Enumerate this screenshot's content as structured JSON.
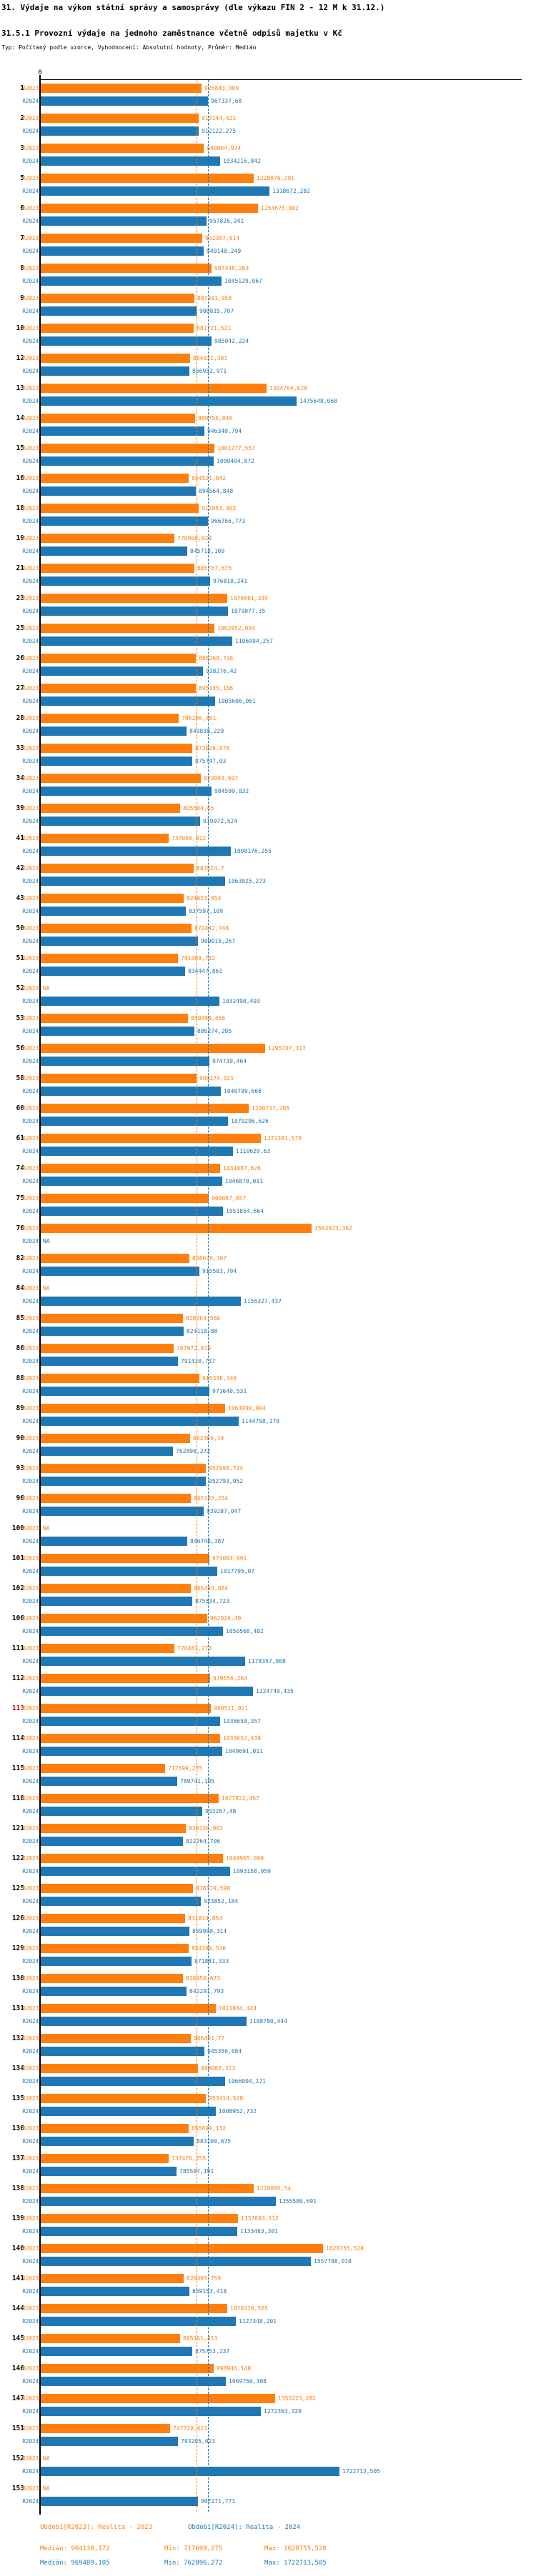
{
  "header": {
    "title": "31. Výdaje na výkon státní správy a samosprávy (dle výkazu FIN 2 - 12 M k 31.12.)",
    "subtitle": "31.5.1 Provozní výdaje na jednoho zaměstnance včetně odpisů majetku v Kč",
    "meta": "Typ: Počítaný podle vzorce, Vyhodnocení: Absolutní hodnoty, Průměr: Medián"
  },
  "axis": {
    "zero_label": "0"
  },
  "chart_data": {
    "type": "bar",
    "orientation": "horizontal",
    "value_unit": "Kč",
    "xlim": [
      0,
      1750000
    ],
    "grid": false,
    "na_label": "NA",
    "red_row_ids": [
      "113"
    ],
    "series": [
      {
        "name": "R2023",
        "color": "#ff7f0e"
      },
      {
        "name": "R2024",
        "color": "#1f77b4"
      }
    ],
    "median_lines": [
      {
        "series": "R2023",
        "value": 904138.172
      },
      {
        "series": "R2024",
        "value": 969489.105
      }
    ],
    "rows": [
      {
        "id": "1",
        "R2023": "926843,009",
        "R2024": "967337,68"
      },
      {
        "id": "2",
        "R2023": "913144,421",
        "R2024": "912122,275"
      },
      {
        "id": "3",
        "R2023": "940004,974",
        "R2024": "1034216,842"
      },
      {
        "id": "5",
        "R2023": "1228076,291",
        "R2024": "1318672,282"
      },
      {
        "id": "6",
        "R2023": "1254675,002",
        "R2024": "957826,241"
      },
      {
        "id": "7",
        "R2023": "932307,614",
        "R2024": "940148,249"
      },
      {
        "id": "8",
        "R2023": "987448,263",
        "R2024": "1045129,067"
      },
      {
        "id": "9",
        "R2023": "887301,958",
        "R2024": "900835,707"
      },
      {
        "id": "10",
        "R2023": "881721,521",
        "R2024": "985042,224"
      },
      {
        "id": "12",
        "R2023": "864031,301",
        "R2024": "856952,971"
      },
      {
        "id": "13",
        "R2023": "1304764,628",
        "R2024": "1475648,068"
      },
      {
        "id": "14",
        "R2023": "889755,846",
        "R2024": "946340,794"
      },
      {
        "id": "15",
        "R2023": "1001277,557",
        "R2024": "1000404,872"
      },
      {
        "id": "16",
        "R2023": "854521,842",
        "R2024": "894564,848"
      },
      {
        "id": "18",
        "R2023": "912853,403",
        "R2024": "966766,773"
      },
      {
        "id": "19",
        "R2023": "770968,028",
        "R2024": "845718,109"
      },
      {
        "id": "21",
        "R2023": "885767,675",
        "R2024": "976810,241"
      },
      {
        "id": "23",
        "R2023": "1076661,334",
        "R2024": "1079077,35"
      },
      {
        "id": "25",
        "R2023": "1002952,054",
        "R2024": "1106994,257"
      },
      {
        "id": "26",
        "R2023": "895269,716",
        "R2024": "938276,42"
      },
      {
        "id": "27",
        "R2023": "895145,186",
        "R2024": "1005606,061"
      },
      {
        "id": "28",
        "R2023": "796206,481",
        "R2024": "840830,229"
      },
      {
        "id": "33",
        "R2023": "873026,076",
        "R2024": "875747,03"
      },
      {
        "id": "34",
        "R2023": "923903,697",
        "R2024": "984599,832"
      },
      {
        "id": "39",
        "R2023": "805504,65",
        "R2024": "919072,524"
      },
      {
        "id": "41",
        "R2023": "737050,012",
        "R2024": "1098176,255"
      },
      {
        "id": "42",
        "R2023": "883524,7",
        "R2024": "1063025,273"
      },
      {
        "id": "43",
        "R2023": "824623,853",
        "R2024": "837597,109"
      },
      {
        "id": "50",
        "R2023": "872442,748",
        "R2024": "909015,267"
      },
      {
        "id": "51",
        "R2023": "791099,742",
        "R2024": "834447,861"
      },
      {
        "id": "52",
        "R2023": null,
        "R2024": "1032490,493"
      },
      {
        "id": "53",
        "R2023": "850899,456",
        "R2024": "886274,295"
      },
      {
        "id": "56",
        "R2023": "1295707,317",
        "R2024": "974739,464"
      },
      {
        "id": "58",
        "R2023": "900274,021",
        "R2024": "1040799,668"
      },
      {
        "id": "60",
        "R2023": "1200737,705",
        "R2024": "1079296,626"
      },
      {
        "id": "61",
        "R2023": "1272381,579",
        "R2024": "1110629,63"
      },
      {
        "id": "74",
        "R2023": "1034087,626",
        "R2024": "1046870,011"
      },
      {
        "id": "75",
        "R2023": "969087,657",
        "R2024": "1051854,664"
      },
      {
        "id": "76",
        "R2023": "1563923,362",
        "R2024": null
      },
      {
        "id": "82",
        "R2023": "858676,307",
        "R2024": "915503,794"
      },
      {
        "id": "84",
        "R2023": null,
        "R2024": "1155327,437"
      },
      {
        "id": "85",
        "R2023": "820263,566",
        "R2024": "824118,88"
      },
      {
        "id": "86",
        "R2023": "767972,619",
        "R2024": "791430,737"
      },
      {
        "id": "88",
        "R2023": "915338,346",
        "R2024": "971640,531"
      },
      {
        "id": "89",
        "R2023": "1064990,904",
        "R2024": "1144758,179"
      },
      {
        "id": "90",
        "R2023": "862309,19",
        "R2024": "762896,272"
      },
      {
        "id": "93",
        "R2023": "952998,724",
        "R2024": "952793,952"
      },
      {
        "id": "96",
        "R2023": "865185,254",
        "R2024": "939287,047"
      },
      {
        "id": "100",
        "R2023": null,
        "R2024": "846748,387"
      },
      {
        "id": "101",
        "R2023": "974093,991",
        "R2024": "1017705,07"
      },
      {
        "id": "102",
        "R2023": "865494,884",
        "R2024": "875534,723"
      },
      {
        "id": "106",
        "R2023": "962026,49",
        "R2024": "1050568,482"
      },
      {
        "id": "111",
        "R2023": "770481,273",
        "R2024": "1178357,868"
      },
      {
        "id": "112",
        "R2023": "979556,264",
        "R2024": "1224749,435"
      },
      {
        "id": "113",
        "R2023": "980511,921",
        "R2024": "1036650,357"
      },
      {
        "id": "114",
        "R2023": "1033652,439",
        "R2024": "1049691,011"
      },
      {
        "id": "115",
        "R2023": "717699,275",
        "R2024": "789741,105"
      },
      {
        "id": "118",
        "R2023": "1027822,457",
        "R2024": "933267,48"
      },
      {
        "id": "121",
        "R2023": "838136,002",
        "R2024": "822764,706"
      },
      {
        "id": "122",
        "R2023": "1049965,099",
        "R2024": "1093158,959"
      },
      {
        "id": "125",
        "R2023": "878129,598",
        "R2024": "923852,184"
      },
      {
        "id": "126",
        "R2023": "831814,854",
        "R2024": "859990,314"
      },
      {
        "id": "129",
        "R2023": "854399,516",
        "R2024": "871881,333"
      },
      {
        "id": "130",
        "R2023": "818950,673",
        "R2024": "842291,793"
      },
      {
        "id": "131",
        "R2023": "1011864,444",
        "R2024": "1188780,444"
      },
      {
        "id": "132",
        "R2023": "866461,77",
        "R2024": "945356,684"
      },
      {
        "id": "134",
        "R2023": "908002,323",
        "R2024": "1066004,171"
      },
      {
        "id": "135",
        "R2023": "953414,528",
        "R2024": "1008952,732"
      },
      {
        "id": "136",
        "R2023": "855699,132",
        "R2024": "883100,675"
      },
      {
        "id": "137",
        "R2023": "737476,255",
        "R2024": "785597,191"
      },
      {
        "id": "138",
        "R2023": "1228095,54",
        "R2024": "1355580,691"
      },
      {
        "id": "139",
        "R2023": "1137693,112",
        "R2024": "1133463,301"
      },
      {
        "id": "140",
        "R2023": "1628755,528",
        "R2024": "1557788,018"
      },
      {
        "id": "141",
        "R2023": "826365,759",
        "R2024": "859153,418"
      },
      {
        "id": "144",
        "R2023": "1076316,565",
        "R2024": "1127348,201"
      },
      {
        "id": "145",
        "R2023": "805161,413",
        "R2024": "875753,237"
      },
      {
        "id": "146",
        "R2023": "998946,148",
        "R2024": "1069750,308"
      },
      {
        "id": "147",
        "R2023": "1353223,282",
        "R2024": "1272363,329"
      },
      {
        "id": "151",
        "R2023": "747728,621",
        "R2024": "793205,023"
      },
      {
        "id": "152",
        "R2023": null,
        "R2024": "1722713,505"
      },
      {
        "id": "153",
        "R2023": null,
        "R2024": "907271,771"
      }
    ]
  },
  "footer": {
    "legend_2023": "Období[R2023]: Realita - 2023",
    "legend_2024": "Období[R2024]: Realita - 2024",
    "median_2023": "Medián: 904138,172",
    "min_2023": "Min: 717699,275",
    "max_2023": "Max: 1628755,528",
    "median_2024": "Medián: 969489,105",
    "min_2024": "Min: 762896,272",
    "max_2024": "Max: 1722713,505"
  }
}
